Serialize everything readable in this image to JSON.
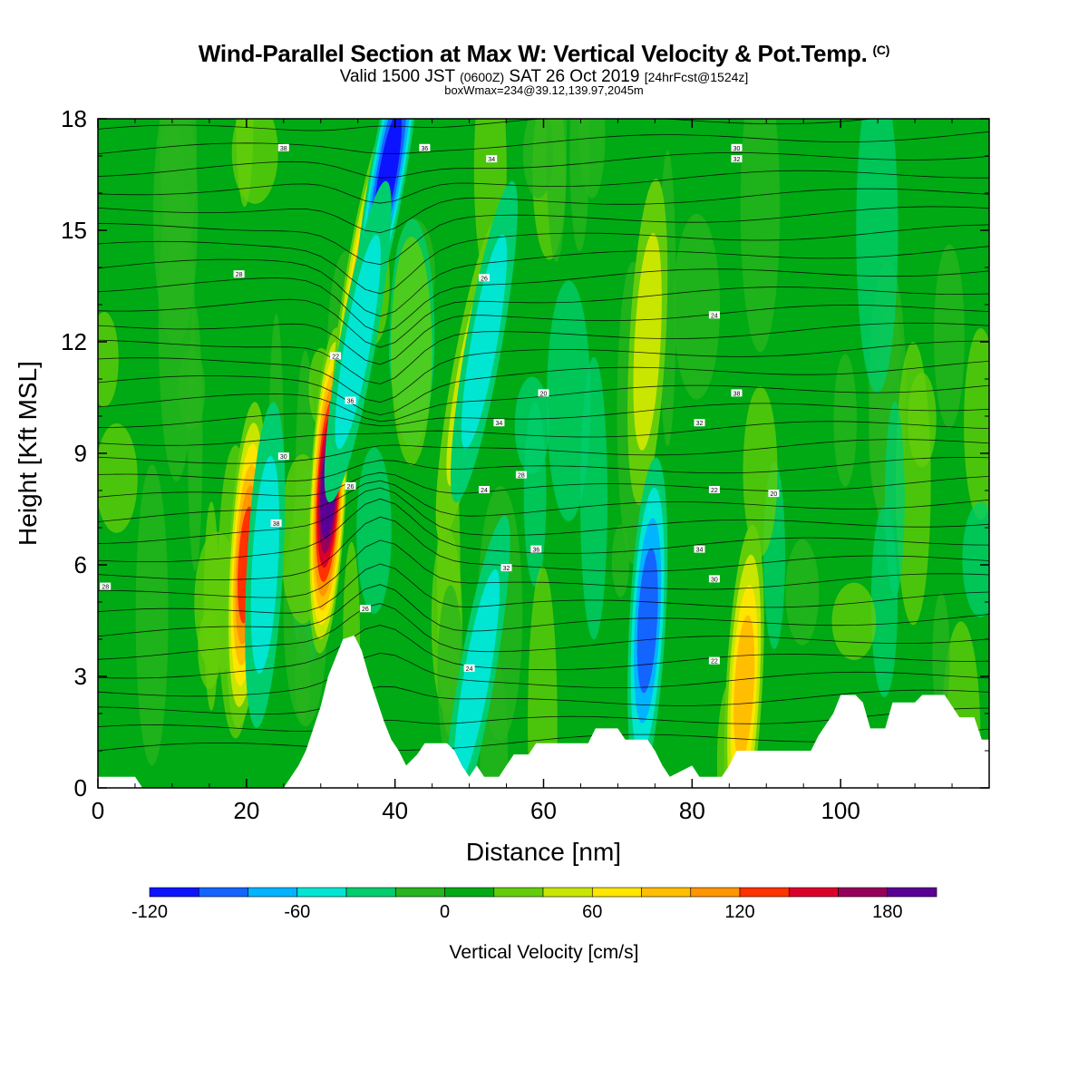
{
  "header": {
    "title": "Wind-Parallel Section at Max W: Vertical Velocity & Pot.Temp.",
    "copyright": "(C)",
    "valid_prefix": "Valid 1500 JST",
    "valid_zulu": "(0600Z)",
    "valid_date": "SAT 26 Oct 2019",
    "forecast": "[24hrFcst@1524z]",
    "boxwmax": "boxWmax=234@39.12,139.97,2045m"
  },
  "chart_data": {
    "type": "heatmap",
    "title": "Wind-Parallel Section at Max W: Vertical Velocity & Pot.Temp.",
    "xlabel": "Distance [nm]",
    "ylabel": "Height [Kft MSL]",
    "xlim": [
      0,
      120
    ],
    "ylim": [
      0,
      18
    ],
    "xticks": [
      0,
      20,
      40,
      60,
      80,
      100
    ],
    "yticks": [
      0,
      3,
      6,
      9,
      12,
      15,
      18
    ],
    "grid": false,
    "colorbar": {
      "label": "Vertical Velocity [cm/s]",
      "placement": "bottom",
      "min": -120,
      "max": 200,
      "step": 20,
      "tick_values": [
        -120,
        -60,
        0,
        60,
        120,
        180
      ],
      "colors": [
        "#0c14ff",
        "#1464ff",
        "#00b4ff",
        "#00e6d2",
        "#00cd6e",
        "#28b41e",
        "#00aa14",
        "#64cd0a",
        "#c8e600",
        "#ffe600",
        "#ffbe00",
        "#ff9600",
        "#ff3200",
        "#dc0028",
        "#96005a",
        "#5a0096"
      ]
    },
    "theta_labels_deg_c": [
      "38",
      "36",
      "34",
      "32",
      "30",
      "28",
      "26",
      "24",
      "22",
      "20"
    ],
    "updraft_cores": [
      {
        "x_nm": 31,
        "z_kft": 8,
        "w_cms": 200
      },
      {
        "x_nm": 20,
        "z_kft": 6,
        "w_cms": 130
      },
      {
        "x_nm": 36,
        "z_kft": 14,
        "w_cms": 110
      },
      {
        "x_nm": 87,
        "z_kft": 2.7,
        "w_cms": 90
      },
      {
        "x_nm": 74,
        "z_kft": 12,
        "w_cms": 50
      },
      {
        "x_nm": 50,
        "z_kft": 11,
        "w_cms": 60
      }
    ],
    "downdraft_cores": [
      {
        "x_nm": 39,
        "z_kft": 16.5,
        "w_cms": -120
      },
      {
        "x_nm": 74,
        "z_kft": 4.5,
        "w_cms": -90
      },
      {
        "x_nm": 22.5,
        "z_kft": 6,
        "w_cms": -60
      },
      {
        "x_nm": 52,
        "z_kft": 12,
        "w_cms": -60
      },
      {
        "x_nm": 35,
        "z_kft": 12,
        "w_cms": -60
      },
      {
        "x_nm": 51,
        "z_kft": 3,
        "w_cms": -50
      }
    ],
    "terrain": [
      [
        0,
        0.3
      ],
      [
        5,
        0.3
      ],
      [
        6,
        0
      ],
      [
        25,
        0
      ],
      [
        26,
        0.3
      ],
      [
        27,
        0.6
      ],
      [
        28,
        1
      ],
      [
        29,
        1.6
      ],
      [
        30,
        2.2
      ],
      [
        31,
        3
      ],
      [
        32,
        3.5
      ],
      [
        33,
        4
      ],
      [
        34.5,
        4.1
      ],
      [
        35.5,
        3.7
      ],
      [
        36.5,
        3
      ],
      [
        37.5,
        2.4
      ],
      [
        38.5,
        1.8
      ],
      [
        39.5,
        1.3
      ],
      [
        40.5,
        1
      ],
      [
        41.5,
        0.6
      ],
      [
        43,
        0.9
      ],
      [
        44,
        1.2
      ],
      [
        47,
        1.2
      ],
      [
        48,
        1
      ],
      [
        49,
        0.6
      ],
      [
        50,
        0.3
      ],
      [
        51,
        0.6
      ],
      [
        52,
        0.3
      ],
      [
        54,
        0.3
      ],
      [
        55,
        0.6
      ],
      [
        56,
        0.9
      ],
      [
        58,
        0.9
      ],
      [
        59,
        1.2
      ],
      [
        66,
        1.2
      ],
      [
        67,
        1.6
      ],
      [
        70,
        1.6
      ],
      [
        71,
        1.3
      ],
      [
        74,
        1.3
      ],
      [
        75,
        1
      ],
      [
        76,
        0.6
      ],
      [
        77,
        0.3
      ],
      [
        80,
        0.6
      ],
      [
        81,
        0.3
      ],
      [
        84,
        0.3
      ],
      [
        85,
        0.6
      ],
      [
        86,
        1
      ],
      [
        96,
        1
      ],
      [
        97,
        1.4
      ],
      [
        99,
        2
      ],
      [
        100,
        2.5
      ],
      [
        102,
        2.5
      ],
      [
        103,
        2.3
      ],
      [
        104,
        1.6
      ],
      [
        106,
        1.6
      ],
      [
        107,
        2.3
      ],
      [
        110,
        2.3
      ],
      [
        111,
        2.5
      ],
      [
        114,
        2.5
      ],
      [
        115,
        2.2
      ],
      [
        116,
        1.9
      ],
      [
        118,
        1.9
      ],
      [
        119,
        1.3
      ],
      [
        120,
        1.3
      ]
    ]
  }
}
